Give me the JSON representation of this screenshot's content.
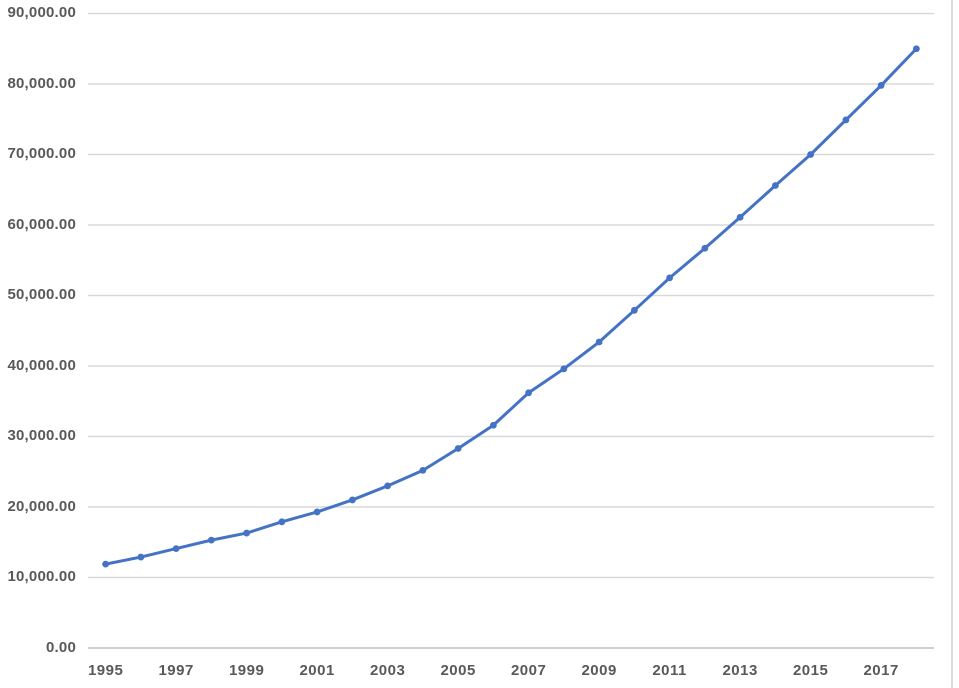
{
  "chart_data": {
    "type": "line",
    "title": "",
    "xlabel": "",
    "ylabel": "",
    "x": [
      1995,
      1996,
      1997,
      1998,
      1999,
      2000,
      2001,
      2002,
      2003,
      2004,
      2005,
      2006,
      2007,
      2008,
      2009,
      2010,
      2011,
      2012,
      2013,
      2014,
      2015,
      2016,
      2017,
      2018
    ],
    "x_tick_labels": [
      "1995",
      "1997",
      "1999",
      "2001",
      "2003",
      "2005",
      "2007",
      "2009",
      "2011",
      "2013",
      "2015",
      "2017"
    ],
    "series": [
      {
        "name": "",
        "color": "#4472C4",
        "marker": "circle",
        "values": [
          11900,
          12900,
          14100,
          15300,
          16300,
          17900,
          19300,
          21000,
          23000,
          25200,
          28300,
          31600,
          36200,
          39600,
          43400,
          47900,
          52500,
          56700,
          61100,
          65600,
          70000,
          74900,
          79800,
          85000
        ]
      }
    ],
    "y_ticks": [
      {
        "value": 0,
        "label": "0.00"
      },
      {
        "value": 10000,
        "label": "10,000.00"
      },
      {
        "value": 20000,
        "label": "20,000.00"
      },
      {
        "value": 30000,
        "label": "30,000.00"
      },
      {
        "value": 40000,
        "label": "40,000.00"
      },
      {
        "value": 50000,
        "label": "50,000.00"
      },
      {
        "value": 60000,
        "label": "60,000.00"
      },
      {
        "value": 70000,
        "label": "70,000.00"
      },
      {
        "value": 80000,
        "label": "80,000.00"
      },
      {
        "value": 90000,
        "label": "90,000.00"
      }
    ],
    "ylim": [
      0,
      90000
    ],
    "grid": "horizontal",
    "legend": "none",
    "colors": {
      "series_line": "#4472C4",
      "gridline": "#D9D9D9",
      "axis_line": "#BFBFBF",
      "tick_label": "#595959",
      "background": "#FFFFFF",
      "right_edge": "#DADADA"
    }
  }
}
